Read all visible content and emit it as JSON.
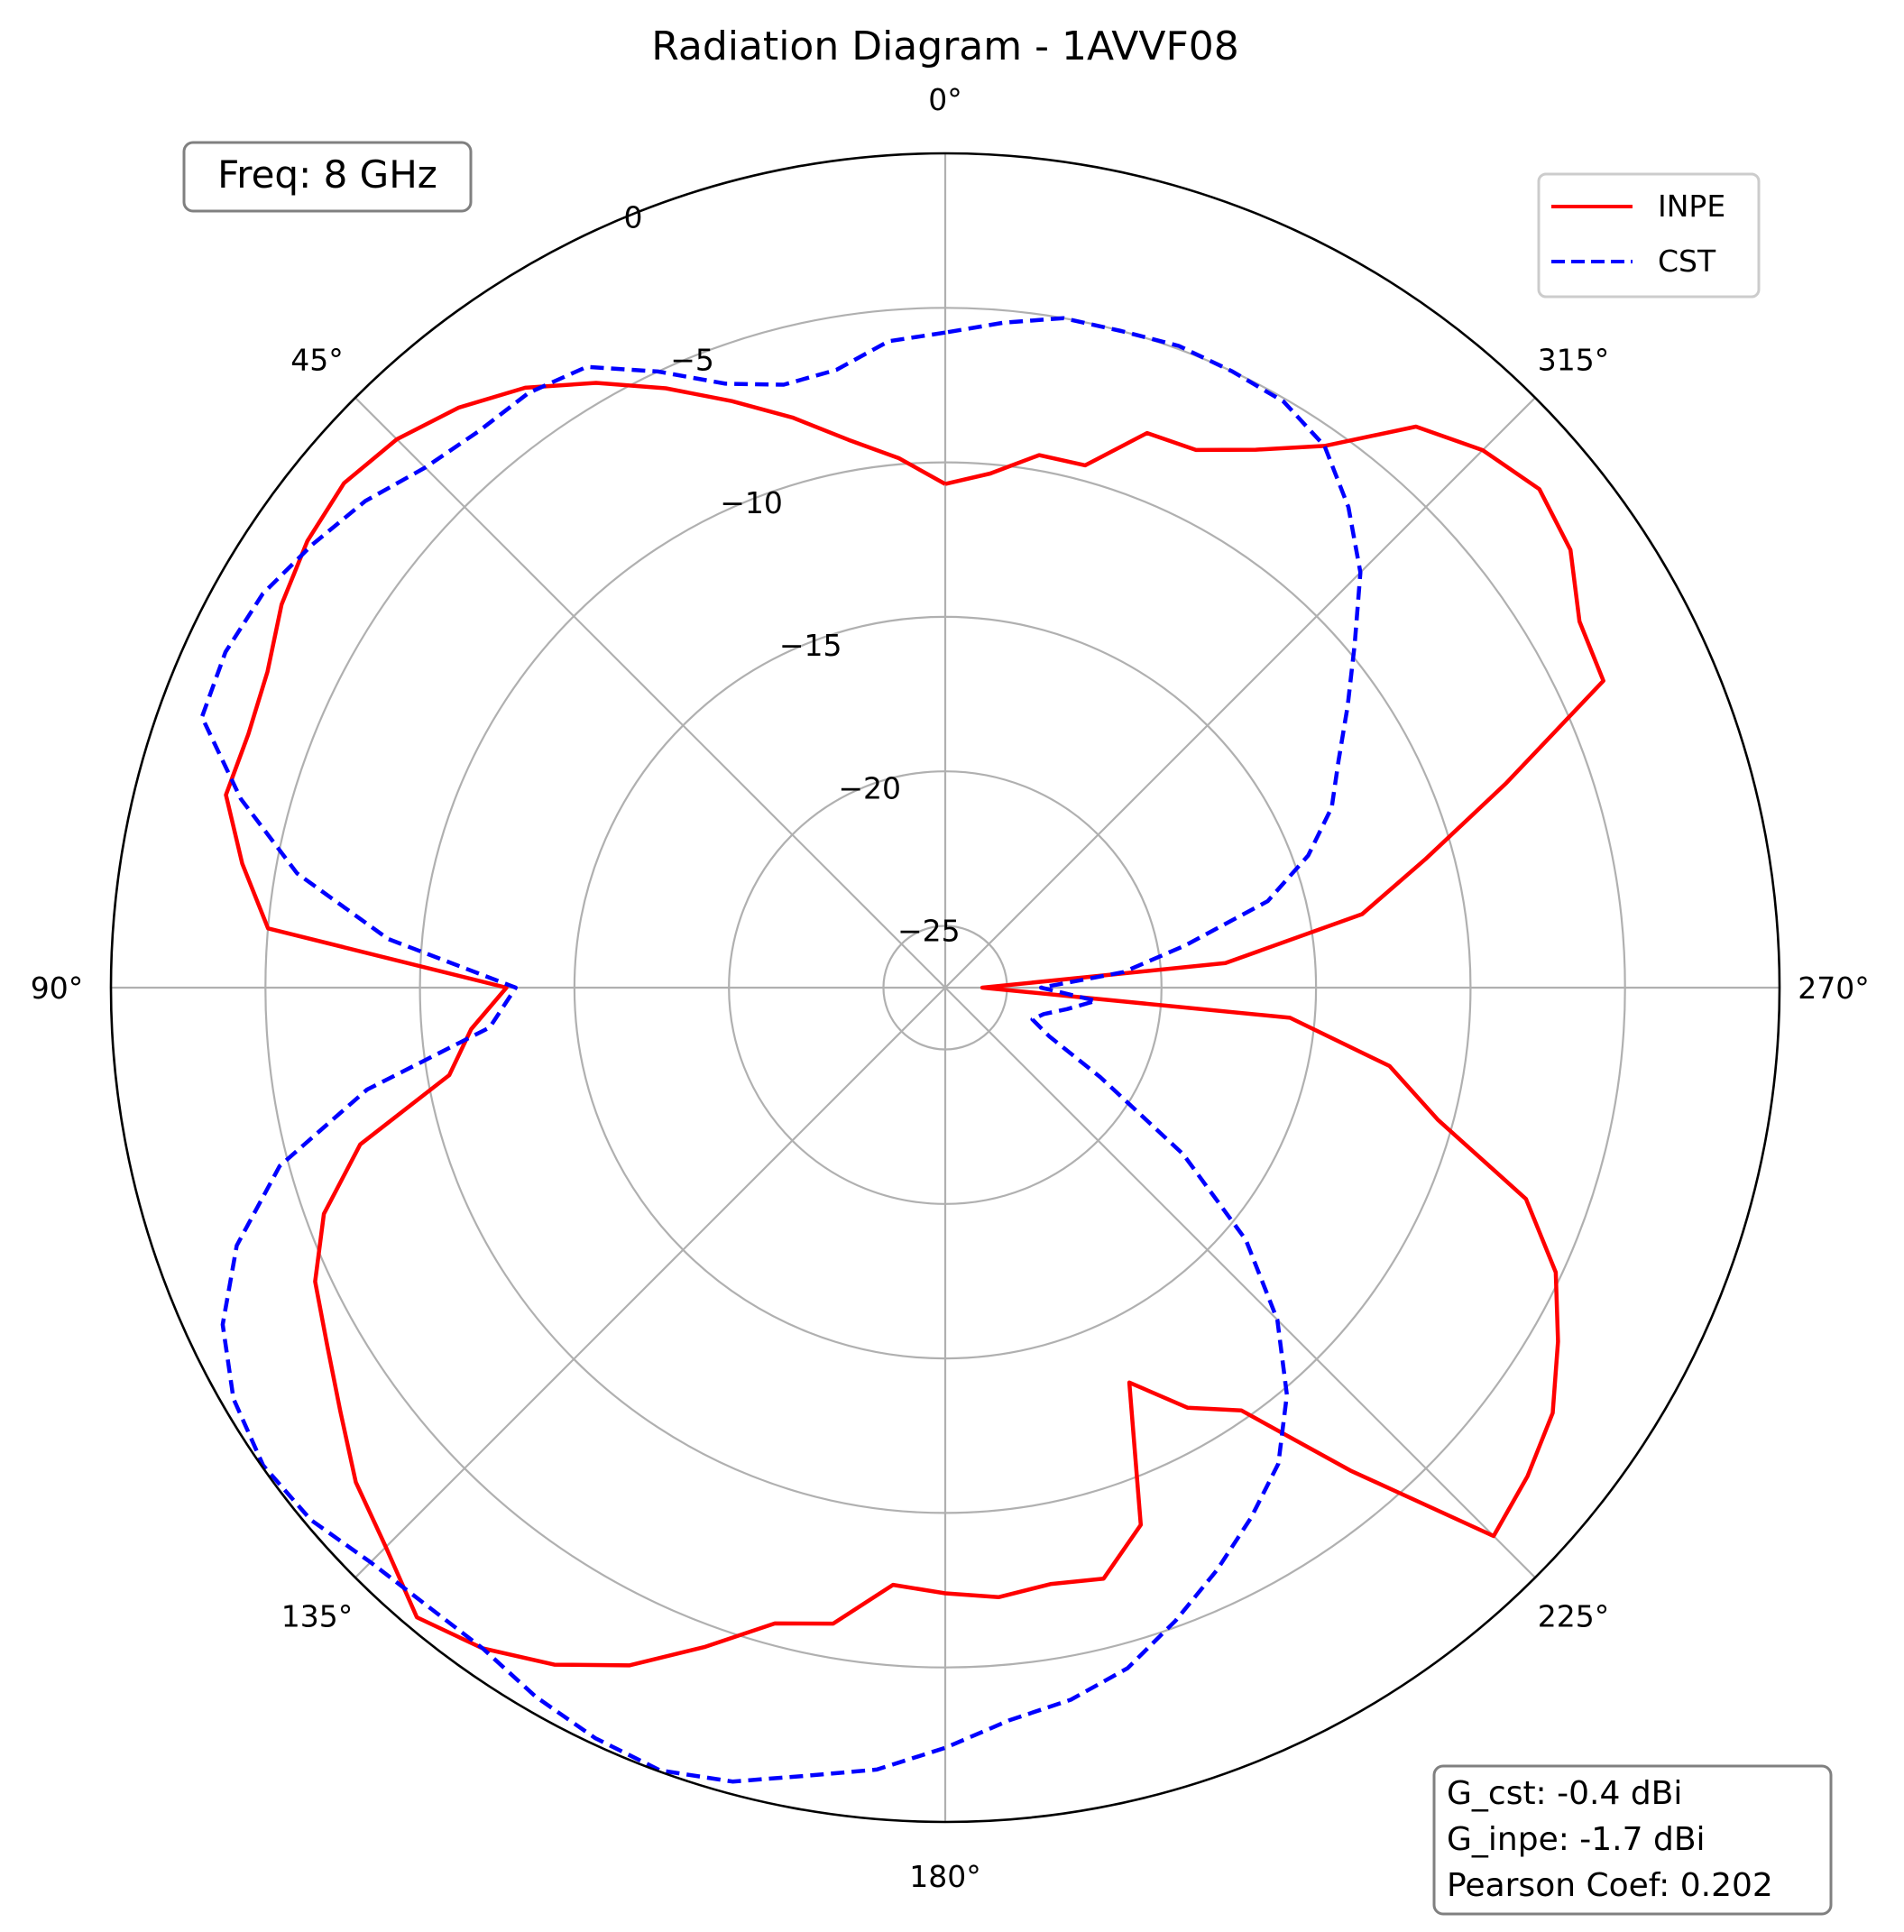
{
  "chart_data": {
    "type": "polar-line",
    "title": "Radiation Diagram - 1AVVF08",
    "theta_zero": "top",
    "theta_direction": "counterclockwise",
    "theta_ticks": [
      {
        "value": 0,
        "label": "0°"
      },
      {
        "value": 45,
        "label": "45°"
      },
      {
        "value": 90,
        "label": "90°"
      },
      {
        "value": 135,
        "label": "135°"
      },
      {
        "value": 180,
        "label": "180°"
      },
      {
        "value": 225,
        "label": "225°"
      },
      {
        "value": 270,
        "label": "270°"
      },
      {
        "value": 315,
        "label": "315°"
      }
    ],
    "r_range": [
      -27,
      0
    ],
    "r_ticks": [
      {
        "value": -25,
        "label": "−25"
      },
      {
        "value": -20,
        "label": "−20"
      },
      {
        "value": -15,
        "label": "−15"
      },
      {
        "value": -10,
        "label": "−10"
      },
      {
        "value": -5,
        "label": "−5"
      },
      {
        "value": 0,
        "label": "0"
      }
    ],
    "r_label_angle": 22.5,
    "grid": true,
    "legend_position": "top-right",
    "series": [
      {
        "name": "INPE",
        "color": "#ff0000",
        "style": "solid",
        "points": [
          [
            0,
            -10.7
          ],
          [
            5,
            -9.8
          ],
          [
            10,
            -9.0
          ],
          [
            15,
            -7.9
          ],
          [
            20,
            -6.8
          ],
          [
            25,
            -5.6
          ],
          [
            30,
            -4.4
          ],
          [
            35,
            -3.3
          ],
          [
            40,
            -2.5
          ],
          [
            45,
            -1.9
          ],
          [
            50,
            -1.6
          ],
          [
            55,
            -1.8
          ],
          [
            60,
            -2.2
          ],
          [
            65,
            -2.8
          ],
          [
            70,
            -3.0
          ],
          [
            75,
            -2.9
          ],
          [
            80,
            -3.9
          ],
          [
            85,
            -5.0
          ],
          [
            90,
            -12.8
          ],
          [
            95,
            -11.6
          ],
          [
            100,
            -10.7
          ],
          [
            105,
            -7.4
          ],
          [
            110,
            -5.6
          ],
          [
            115,
            -4.5
          ],
          [
            120,
            -3.9
          ],
          [
            125,
            -3.1
          ],
          [
            130,
            -2.1
          ],
          [
            135,
            -1.4
          ],
          [
            140,
            -0.4
          ],
          [
            145,
            -0.9
          ],
          [
            150,
            -1.7
          ],
          [
            155,
            -2.8
          ],
          [
            160,
            -4.3
          ],
          [
            165,
            -5.7
          ],
          [
            170,
            -6.1
          ],
          [
            175,
            -7.6
          ],
          [
            180,
            -7.4
          ],
          [
            185,
            -7.2
          ],
          [
            190,
            -7.4
          ],
          [
            195,
            -7.2
          ],
          [
            200,
            -8.5
          ],
          [
            205,
            -12.9
          ],
          [
            210,
            -11.3
          ],
          [
            215,
            -10.3
          ],
          [
            220,
            -6.6
          ],
          [
            225,
            -1.9
          ],
          [
            230,
            -2.4
          ],
          [
            235,
            -3.0
          ],
          [
            240,
            -4.1
          ],
          [
            245,
            -5.2
          ],
          [
            250,
            -7.0
          ],
          [
            255,
            -10.5
          ],
          [
            260,
            -12.4
          ],
          [
            265,
            -15.8
          ],
          [
            270,
            -25.8
          ],
          [
            275,
            -17.9
          ],
          [
            280,
            -13.3
          ],
          [
            285,
            -10.9
          ],
          [
            290,
            -7.7
          ],
          [
            295,
            -3.5
          ],
          [
            300,
            -3.3
          ],
          [
            305,
            -2.3
          ],
          [
            310,
            -1.9
          ],
          [
            315,
            -2.4
          ],
          [
            320,
            -3.3
          ],
          [
            325,
            -5.6
          ],
          [
            330,
            -6.9
          ],
          [
            335,
            -7.8
          ],
          [
            340,
            -7.9
          ],
          [
            345,
            -9.5
          ],
          [
            350,
            -9.5
          ],
          [
            355,
            -10.3
          ]
        ]
      },
      {
        "name": "CST",
        "color": "#0000ff",
        "style": "dashed",
        "points": [
          [
            0,
            -5.8
          ],
          [
            5,
            -6.0
          ],
          [
            10,
            -6.7
          ],
          [
            15,
            -6.8
          ],
          [
            20,
            -6.2
          ],
          [
            25,
            -5.0
          ],
          [
            30,
            -3.8
          ],
          [
            35,
            -3.5
          ],
          [
            40,
            -3.5
          ],
          [
            45,
            -3.2
          ],
          [
            50,
            -2.5
          ],
          [
            55,
            -2.0
          ],
          [
            60,
            -1.5
          ],
          [
            65,
            -1.3
          ],
          [
            70,
            -1.4
          ],
          [
            75,
            -3.4
          ],
          [
            80,
            -5.7
          ],
          [
            85,
            -8.9
          ],
          [
            90,
            -13.1
          ],
          [
            95,
            -12.2
          ],
          [
            100,
            -8.0
          ],
          [
            105,
            -4.7
          ],
          [
            110,
            -2.6
          ],
          [
            115,
            -1.2
          ],
          [
            120,
            -0.4
          ],
          [
            125,
            -0.05
          ],
          [
            130,
            -0.2
          ],
          [
            135,
            -0.7
          ],
          [
            140,
            -0.9
          ],
          [
            145,
            -0.9
          ],
          [
            150,
            -0.5
          ],
          [
            155,
            -0.2
          ],
          [
            160,
            -0.04
          ],
          [
            165,
            -0.4
          ],
          [
            170,
            -1.1
          ],
          [
            175,
            -1.6
          ],
          [
            180,
            -2.4
          ],
          [
            185,
            -3.2
          ],
          [
            190,
            -3.6
          ],
          [
            195,
            -4.2
          ],
          [
            200,
            -5.2
          ],
          [
            205,
            -6.2
          ],
          [
            210,
            -7.2
          ],
          [
            215,
            -8.2
          ],
          [
            220,
            -9.8
          ],
          [
            225,
            -11.8
          ],
          [
            230,
            -14.3
          ],
          [
            235,
            -17.6
          ],
          [
            240,
            -21.2
          ],
          [
            245,
            -23.3
          ],
          [
            250,
            -24.0
          ],
          [
            255,
            -23.7
          ],
          [
            260,
            -23.0
          ],
          [
            265,
            -22.1
          ],
          [
            270,
            -23.9
          ],
          [
            275,
            -21.2
          ],
          [
            280,
            -19.1
          ],
          [
            285,
            -16.2
          ],
          [
            290,
            -14.5
          ],
          [
            295,
            -13.2
          ],
          [
            300,
            -12.3
          ],
          [
            305,
            -11.1
          ],
          [
            310,
            -9.7
          ],
          [
            315,
            -8.0
          ],
          [
            320,
            -6.7
          ],
          [
            325,
            -5.6
          ],
          [
            330,
            -5.1
          ],
          [
            335,
            -5.0
          ],
          [
            340,
            -4.9
          ],
          [
            345,
            -5.0
          ],
          [
            350,
            -5.0
          ],
          [
            355,
            -5.4
          ]
        ]
      }
    ],
    "annotations": {
      "freq": "Freq: 8 GHz",
      "stats": [
        "G_cst: -0.4 dBi",
        "G_inpe: -1.7 dBi",
        "Pearson Coef: 0.202"
      ]
    }
  }
}
